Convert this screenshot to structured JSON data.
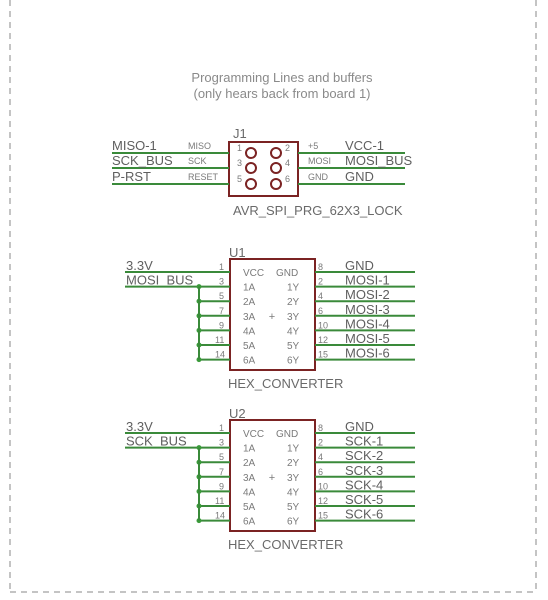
{
  "note": {
    "line1": "Programming Lines and buffers",
    "line2": "(only hears back from board 1)"
  },
  "j1": {
    "ref": "J1",
    "value": "AVR_SPI_PRG_62X3_LOCK",
    "pins": [
      {
        "num": "1",
        "name": "MISO",
        "net": "MISO-1"
      },
      {
        "num": "2",
        "name": "+5",
        "net": "VCC-1"
      },
      {
        "num": "3",
        "name": "SCK",
        "net": "SCK_BUS"
      },
      {
        "num": "4",
        "name": "MOSI",
        "net": "MOSI_BUS"
      },
      {
        "num": "5",
        "name": "RESET",
        "net": "P-RST"
      },
      {
        "num": "6",
        "name": "GND",
        "net": "GND"
      }
    ]
  },
  "u1": {
    "ref": "U1",
    "value": "HEX_CONVERTER",
    "vcc": {
      "num": "1",
      "name": "VCC",
      "net": "3.3V"
    },
    "gnd": {
      "num": "8",
      "name": "GND",
      "net": "GND"
    },
    "in_net": "MOSI_BUS",
    "inputs": [
      {
        "num": "3",
        "name": "1A"
      },
      {
        "num": "5",
        "name": "2A"
      },
      {
        "num": "7",
        "name": "3A"
      },
      {
        "num": "9",
        "name": "4A"
      },
      {
        "num": "11",
        "name": "5A"
      },
      {
        "num": "14",
        "name": "6A"
      }
    ],
    "outputs": [
      {
        "num": "2",
        "name": "1Y",
        "net": "MOSI-1"
      },
      {
        "num": "4",
        "name": "2Y",
        "net": "MOSI-2"
      },
      {
        "num": "6",
        "name": "3Y",
        "net": "MOSI-3"
      },
      {
        "num": "10",
        "name": "4Y",
        "net": "MOSI-4"
      },
      {
        "num": "12",
        "name": "5Y",
        "net": "MOSI-5"
      },
      {
        "num": "15",
        "name": "6Y",
        "net": "MOSI-6"
      }
    ],
    "center": "+"
  },
  "u2": {
    "ref": "U2",
    "value": "HEX_CONVERTER",
    "vcc": {
      "num": "1",
      "name": "VCC",
      "net": "3.3V"
    },
    "gnd": {
      "num": "8",
      "name": "GND",
      "net": "GND"
    },
    "in_net": "SCK_BUS",
    "inputs": [
      {
        "num": "3",
        "name": "1A"
      },
      {
        "num": "5",
        "name": "2A"
      },
      {
        "num": "7",
        "name": "3A"
      },
      {
        "num": "9",
        "name": "4A"
      },
      {
        "num": "11",
        "name": "5A"
      },
      {
        "num": "14",
        "name": "6A"
      }
    ],
    "outputs": [
      {
        "num": "2",
        "name": "1Y",
        "net": "SCK-1"
      },
      {
        "num": "4",
        "name": "2Y",
        "net": "SCK-2"
      },
      {
        "num": "6",
        "name": "3Y",
        "net": "SCK-3"
      },
      {
        "num": "10",
        "name": "4Y",
        "net": "SCK-4"
      },
      {
        "num": "12",
        "name": "5Y",
        "net": "SCK-5"
      },
      {
        "num": "15",
        "name": "6Y",
        "net": "SCK-6"
      }
    ],
    "center": "+"
  },
  "colors": {
    "wire": "#3a8a3a",
    "junction": "#3a9a3a",
    "body": "#7b2323",
    "pin": "#7b2323",
    "label": "#7a7a7a",
    "net": "#5f5f5f",
    "frame": "#a8a8a8"
  }
}
